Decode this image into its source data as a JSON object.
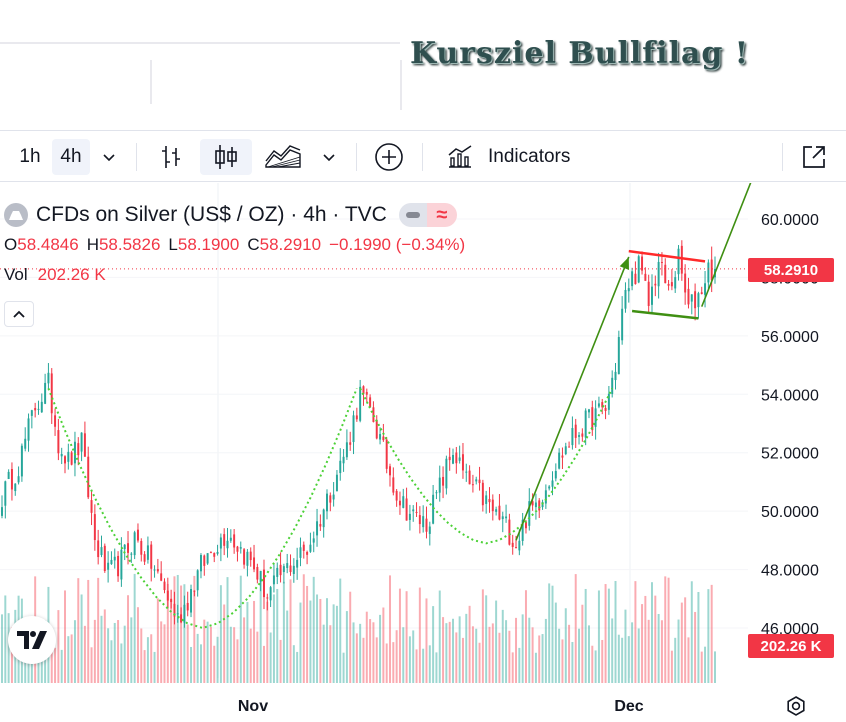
{
  "annotation": {
    "title": "Kursziel Bullfilag !"
  },
  "toolbar": {
    "intervals": [
      "1h",
      "4h"
    ],
    "active_interval": "4h",
    "indicators_label": "Indicators"
  },
  "legend": {
    "symbol_title": "CFDs on Silver (US$ / OZ) · 4h · TVC",
    "ohlc": [
      {
        "key": "O",
        "value": "58.4846"
      },
      {
        "key": "H",
        "value": "58.5826"
      },
      {
        "key": "L",
        "value": "58.1900"
      },
      {
        "key": "C",
        "value": "58.2910"
      }
    ],
    "change": "−0.1990 (−0.34%)",
    "volume_label": "Vol",
    "volume_value": "202.26 K"
  },
  "price_axis": {
    "last_price": "58.2910",
    "last_volume": "202.26 K"
  },
  "colors": {
    "up": "#26a69a",
    "down": "#f23645",
    "annotation_green": "#3f8f12",
    "dotted_green": "#4cd137",
    "resistance_red": "#ff2a2a"
  },
  "chart_data": {
    "type": "candlestick",
    "title": "CFDs on Silver (US$ / OZ) · 4h · TVC",
    "y_tick_labels": [
      "46.0000",
      "48.0000",
      "50.0000",
      "52.0000",
      "54.0000",
      "56.0000",
      "58.0000",
      "60.0000"
    ],
    "ylim": [
      45.2,
      60.6
    ],
    "x_tick_labels": [
      "Nov",
      "Dec"
    ],
    "last_close": 58.291,
    "anchor_path": [
      [
        0,
        50.5
      ],
      [
        5,
        51.6
      ],
      [
        10,
        53.6
      ],
      [
        14,
        54.3
      ],
      [
        17,
        52.4
      ],
      [
        20,
        51.7
      ],
      [
        24,
        52.3
      ],
      [
        28,
        49.0
      ],
      [
        32,
        47.8
      ],
      [
        36,
        48.3
      ],
      [
        40,
        49.1
      ],
      [
        45,
        48.2
      ],
      [
        49,
        47.3
      ],
      [
        53,
        46.3
      ],
      [
        56,
        47.0
      ],
      [
        60,
        48.1
      ],
      [
        64,
        48.8
      ],
      [
        68,
        49.3
      ],
      [
        72,
        48.7
      ],
      [
        76,
        48.1
      ],
      [
        80,
        47.1
      ],
      [
        84,
        47.8
      ],
      [
        88,
        48.3
      ],
      [
        92,
        48.7
      ],
      [
        96,
        49.8
      ],
      [
        100,
        51.0
      ],
      [
        104,
        52.2
      ],
      [
        108,
        54.0
      ],
      [
        112,
        53.2
      ],
      [
        116,
        51.6
      ],
      [
        120,
        50.4
      ],
      [
        124,
        49.8
      ],
      [
        128,
        49.6
      ],
      [
        132,
        50.8
      ],
      [
        136,
        52.1
      ],
      [
        140,
        51.0
      ],
      [
        144,
        50.6
      ],
      [
        148,
        50.0
      ],
      [
        152,
        49.5
      ],
      [
        155,
        48.9
      ],
      [
        158,
        49.8
      ],
      [
        162,
        50.4
      ],
      [
        166,
        51.4
      ],
      [
        170,
        52.2
      ],
      [
        174,
        52.8
      ],
      [
        178,
        53.2
      ],
      [
        182,
        53.5
      ],
      [
        185,
        55.0
      ],
      [
        187,
        56.8
      ],
      [
        189,
        57.8
      ],
      [
        192,
        58.4
      ],
      [
        195,
        57.1
      ],
      [
        198,
        58.5
      ],
      [
        201,
        57.5
      ],
      [
        204,
        58.6
      ],
      [
        207,
        56.9
      ],
      [
        210,
        57.4
      ],
      [
        213,
        58.3
      ],
      [
        215,
        58.29
      ]
    ]
  }
}
